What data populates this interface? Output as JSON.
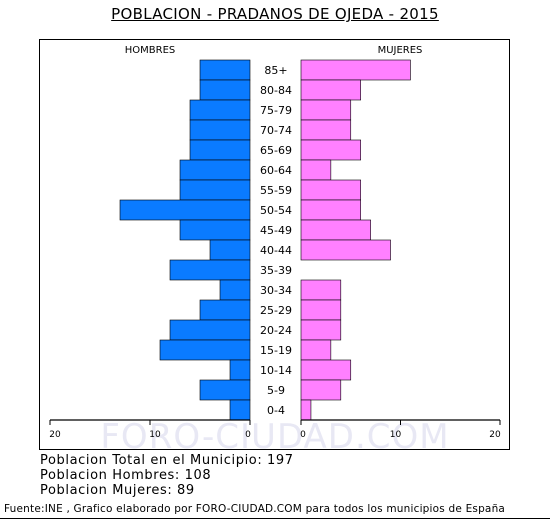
{
  "chart_data": {
    "type": "bar",
    "orientation": "horizontal-pyramid",
    "title": "POBLACION - PRADANOS DE OJEDA - 2015",
    "left_label": "HOMBRES",
    "right_label": "MUJERES",
    "categories": [
      "85+",
      "80-84",
      "75-79",
      "70-74",
      "65-69",
      "60-64",
      "55-59",
      "50-54",
      "45-49",
      "40-44",
      "35-39",
      "30-34",
      "25-29",
      "20-24",
      "15-19",
      "10-14",
      "5-9",
      "0-4"
    ],
    "series": [
      {
        "name": "HOMBRES",
        "color": "#0a7bff",
        "values": [
          5,
          5,
          6,
          6,
          6,
          7,
          7,
          13,
          7,
          4,
          8,
          3,
          5,
          8,
          9,
          2,
          5,
          2
        ]
      },
      {
        "name": "MUJERES",
        "color": "#ff80ff",
        "values": [
          11,
          6,
          5,
          5,
          6,
          3,
          6,
          6,
          7,
          9,
          0,
          4,
          4,
          4,
          3,
          5,
          4,
          1
        ]
      }
    ],
    "axis_max": 20,
    "tick_labels_left": [
      "20",
      "10",
      "0"
    ],
    "tick_labels_right": [
      "0",
      "10",
      "20"
    ],
    "watermark": "FORO-CIUDAD.COM"
  },
  "stats": [
    "Poblacion Total en el Municipio: 197",
    "Poblacion Hombres: 108",
    "Poblacion Mujeres: 89"
  ],
  "source": "Fuente:INE , Grafico elaborado por FORO-CIUDAD.COM para todos los municipios de España"
}
